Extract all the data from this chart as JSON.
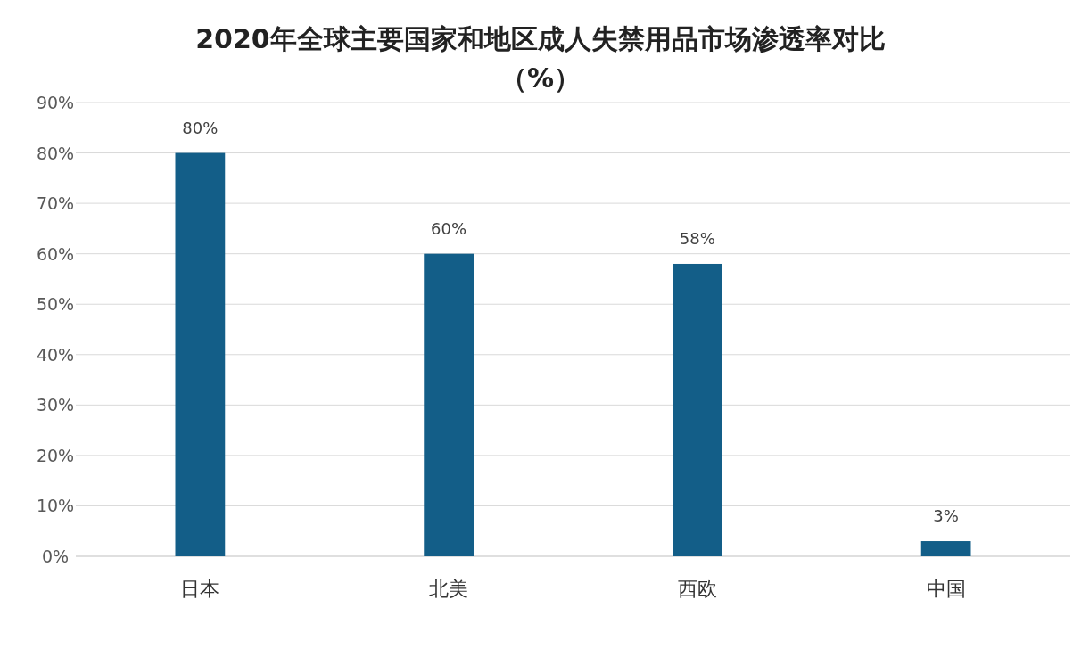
{
  "chart_data": {
    "type": "bar",
    "title": "2020年全球主要国家和地区成人失禁用品市场渗透率对比（%）",
    "categories": [
      "日本",
      "北美",
      "西欧",
      "中国"
    ],
    "values": [
      80,
      60,
      58,
      3
    ],
    "value_labels": [
      "80%",
      "60%",
      "58%",
      "3%"
    ],
    "color": "#135e88",
    "ylim": [
      0,
      90
    ],
    "yticks": [
      {
        "value": 0,
        "label": "0%"
      },
      {
        "value": 10,
        "label": "10%"
      },
      {
        "value": 20,
        "label": "20%"
      },
      {
        "value": 30,
        "label": "30%"
      },
      {
        "value": 40,
        "label": "40%"
      },
      {
        "value": 50,
        "label": "50%"
      },
      {
        "value": 60,
        "label": "60%"
      },
      {
        "value": 70,
        "label": "70%"
      },
      {
        "value": 80,
        "label": "80%"
      },
      {
        "value": 90,
        "label": "90%"
      }
    ],
    "grid": "y"
  }
}
